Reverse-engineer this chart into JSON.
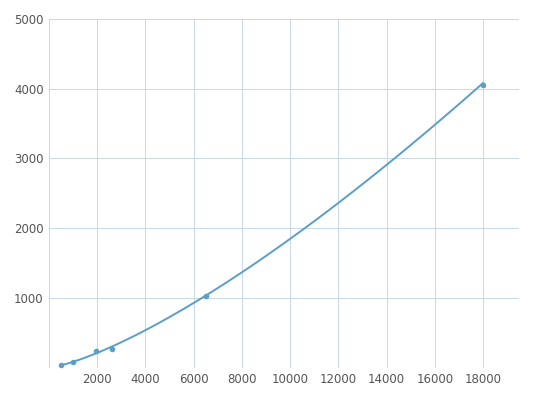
{
  "x": [
    488,
    975,
    1950,
    2600,
    6500,
    18000
  ],
  "y": [
    30,
    80,
    240,
    270,
    1020,
    4050
  ],
  "line_color": "#5b9ec9",
  "marker_color": "#5b9ec9",
  "marker_size": 4,
  "line_width": 1.4,
  "xlim": [
    0,
    19500
  ],
  "ylim": [
    0,
    5000
  ],
  "xticks": [
    0,
    2000,
    4000,
    6000,
    8000,
    10000,
    12000,
    14000,
    16000,
    18000
  ],
  "yticks": [
    0,
    1000,
    2000,
    3000,
    4000,
    5000
  ],
  "grid_color": "#c8d8e8",
  "bg_color": "#ffffff",
  "tick_fontsize": 8.5,
  "spine_color": "#aabbcc"
}
